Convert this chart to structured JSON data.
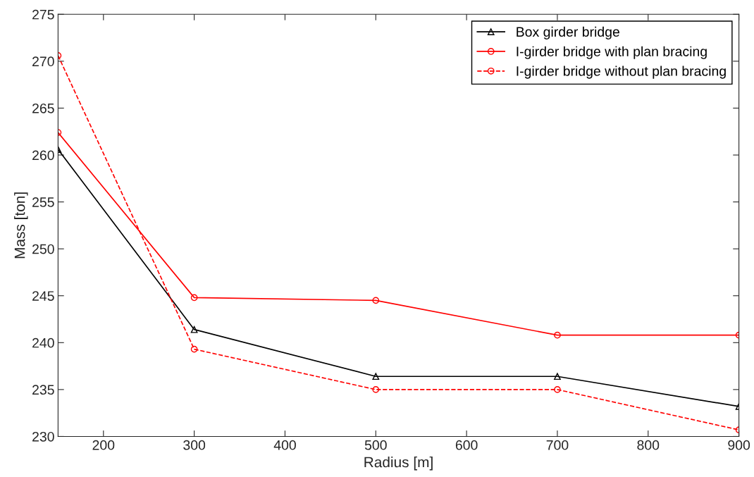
{
  "chart_data": {
    "type": "line",
    "xlabel": "Radius [m]",
    "ylabel": "Mass [ton]",
    "x": [
      150,
      300,
      500,
      700,
      900
    ],
    "series": [
      {
        "name": "Box girder bridge",
        "color": "#000000",
        "marker": "triangle",
        "line_style": "solid",
        "values": [
          260.6,
          241.4,
          236.4,
          236.4,
          233.2
        ]
      },
      {
        "name": "I-girder bridge with plan bracing",
        "color": "#ff0000",
        "marker": "circle",
        "line_style": "solid",
        "values": [
          262.4,
          244.8,
          244.5,
          240.8,
          240.8
        ]
      },
      {
        "name": "I-girder bridge without plan bracing",
        "color": "#ff0000",
        "marker": "circle",
        "line_style": "dashed",
        "values": [
          270.6,
          239.3,
          235.0,
          235.0,
          230.7
        ]
      }
    ],
    "xlim": [
      150,
      900
    ],
    "xticks": [
      200,
      300,
      400,
      500,
      600,
      700,
      800,
      900
    ],
    "ylim": [
      230,
      275
    ],
    "yticks": [
      230,
      235,
      240,
      245,
      250,
      255,
      260,
      265,
      270,
      275
    ],
    "grid": false,
    "legend": "top right"
  }
}
